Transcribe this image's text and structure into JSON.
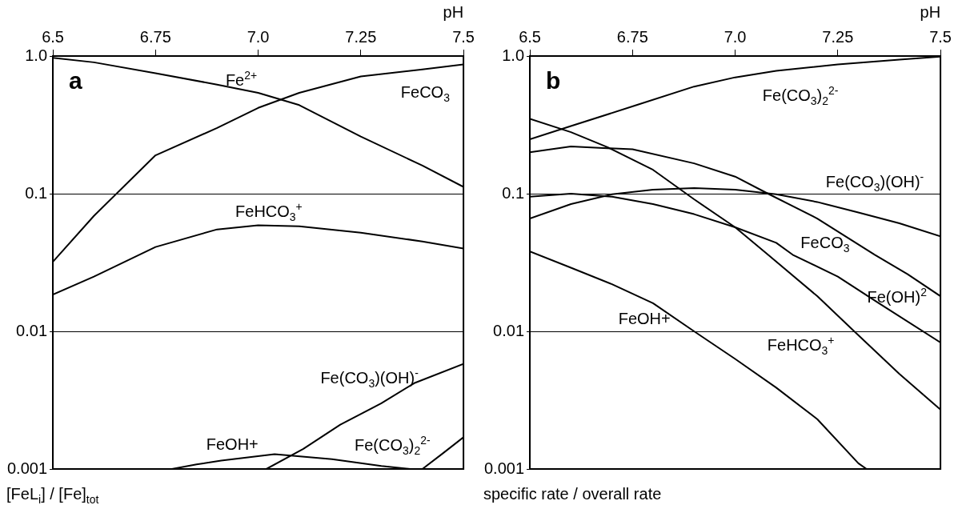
{
  "chart_data": [
    {
      "type": "line",
      "xlabel": "pH",
      "ylabel": "[FeL$_{i}$] / [Fe]$_{tot}$",
      "log": "y",
      "grid": "y",
      "legend": false,
      "marker": "none",
      "line_style": "solid",
      "xlim": [
        6.5,
        7.5
      ],
      "xticks": [
        6.5,
        6.75,
        {
          "value": 7,
          "label": "7.0"
        },
        7.25,
        7.5
      ],
      "ylim": [
        0.001,
        1
      ],
      "yticks": [
        {
          "value": 1,
          "label": "1.0"
        },
        0.1,
        0.01,
        0.001
      ],
      "series": [
        {
          "name": "Fe$^{2+}$",
          "color": "#000000",
          "x": [
            6.5,
            6.6,
            6.75,
            6.9,
            7.0,
            7.1,
            7.25,
            7.4,
            7.5
          ],
          "values": [
            0.97,
            0.9,
            0.75,
            0.62,
            0.54,
            0.44,
            0.26,
            0.16,
            0.112
          ]
        },
        {
          "name": "FeCO$_{3}$",
          "color": "#000000",
          "x": [
            6.5,
            6.6,
            6.75,
            6.9,
            7.0,
            7.1,
            7.25,
            7.4,
            7.5
          ],
          "values": [
            0.032,
            0.069,
            0.19,
            0.3,
            0.42,
            0.54,
            0.71,
            0.8,
            0.87
          ]
        },
        {
          "name": "FeHCO$_{3}$$^{+}$",
          "color": "#000000",
          "x": [
            6.5,
            6.6,
            6.75,
            6.9,
            7.0,
            7.1,
            7.25,
            7.4,
            7.5
          ],
          "values": [
            0.0185,
            0.025,
            0.041,
            0.055,
            0.059,
            0.058,
            0.052,
            0.045,
            0.04
          ]
        },
        {
          "name": "Fe(CO$_{3}$)(OH)$^{-}$",
          "color": "#000000",
          "x": [
            7.02,
            7.11,
            7.2,
            7.3,
            7.38,
            7.5
          ],
          "values": [
            0.001,
            0.0014,
            0.0021,
            0.003,
            0.0042,
            0.0058
          ]
        },
        {
          "name": "FeOH+",
          "color": "#000000",
          "x": [
            6.79,
            6.85,
            6.91,
            7.04,
            7.18,
            7.3,
            7.37
          ],
          "values": [
            0.001,
            0.00108,
            0.00115,
            0.00128,
            0.00118,
            0.00105,
            0.001
          ]
        },
        {
          "name": "Fe(CO$_{3}$)$_{2}$$^{2-}$",
          "color": "#000000",
          "x": [
            7.4,
            7.45,
            7.5
          ],
          "values": [
            0.001,
            0.0013,
            0.0017
          ]
        }
      ],
      "annotations": [
        "a"
      ]
    },
    {
      "type": "line",
      "xlabel": "pH",
      "ylabel": "specific rate / overall rate",
      "log": "y",
      "grid": "y",
      "legend": false,
      "marker": "none",
      "line_style": "solid",
      "xlim": [
        6.5,
        7.5
      ],
      "xticks": [
        6.5,
        6.75,
        {
          "value": 7,
          "label": "7.0"
        },
        7.25,
        7.5
      ],
      "ylim": [
        0.001,
        1
      ],
      "yticks": [
        {
          "value": 1,
          "label": "1.0"
        },
        0.1,
        0.01,
        0.001
      ],
      "series": [
        {
          "name": "Fe(CO$_{3}$)$_{2}$$^{2-}$",
          "color": "#000000",
          "x": [
            6.5,
            6.6,
            6.76,
            6.9,
            7.0,
            7.1,
            7.25,
            7.4,
            7.5
          ],
          "values": [
            0.248,
            0.31,
            0.44,
            0.6,
            0.7,
            0.78,
            0.87,
            0.94,
            0.99
          ]
        },
        {
          "name": "FeHCO$_{3}$$^{+}$",
          "color": "#000000",
          "x": [
            6.5,
            6.6,
            6.69,
            6.8,
            6.9,
            7.0,
            7.08,
            7.2,
            7.29,
            7.4,
            7.5
          ],
          "values": [
            0.35,
            0.28,
            0.217,
            0.149,
            0.091,
            0.057,
            0.036,
            0.018,
            0.01,
            0.0049,
            0.0027
          ]
        },
        {
          "name": "FeCO$_{3}$",
          "color": "#000000",
          "x": [
            6.5,
            6.6,
            6.75,
            6.9,
            7.0,
            7.08,
            7.2,
            7.34,
            7.42,
            7.5
          ],
          "values": [
            0.2,
            0.22,
            0.21,
            0.166,
            0.133,
            0.1,
            0.066,
            0.036,
            0.026,
            0.018
          ]
        },
        {
          "name": "Fe(CO$_{3}$)(OH)$^{-}$",
          "color": "#000000",
          "x": [
            6.5,
            6.6,
            6.7,
            6.8,
            6.9,
            7.0,
            7.1,
            7.2,
            7.3,
            7.4,
            7.5
          ],
          "values": [
            0.066,
            0.084,
            0.099,
            0.107,
            0.11,
            0.107,
            0.099,
            0.087,
            0.073,
            0.061,
            0.049
          ]
        },
        {
          "name": "Fe(OH)$^{2}$",
          "color": "#000000",
          "x": [
            6.5,
            6.6,
            6.7,
            6.8,
            6.9,
            7.0,
            7.1,
            7.14,
            7.25,
            7.35,
            7.5
          ],
          "values": [
            0.095,
            0.1,
            0.095,
            0.084,
            0.071,
            0.057,
            0.044,
            0.036,
            0.025,
            0.016,
            0.0083
          ]
        },
        {
          "name": "FeOH+",
          "color": "#000000",
          "x": [
            6.5,
            6.6,
            6.7,
            6.8,
            6.9,
            7.0,
            7.1,
            7.2,
            7.3,
            7.32
          ],
          "values": [
            0.038,
            0.029,
            0.022,
            0.016,
            0.01,
            0.0063,
            0.0039,
            0.0023,
            0.0011,
            0.001
          ]
        }
      ],
      "annotations": [
        "b"
      ]
    }
  ]
}
